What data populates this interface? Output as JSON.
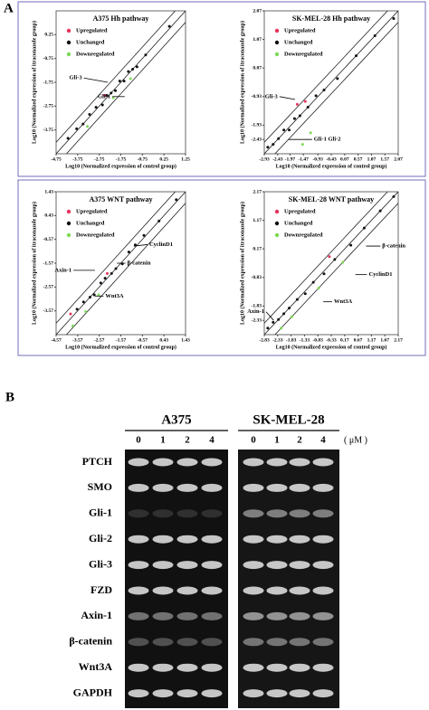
{
  "panel_labels": [
    "A",
    "B"
  ],
  "chart_data": [
    {
      "type": "scatter",
      "title": "A375  Hh pathway",
      "x_label": "Log10 (Normalized expression of control group)",
      "y_label": "Log10 (Normalized expression of itraconazole group)",
      "xlim": [
        -4.75,
        1.25
      ],
      "ylim": [
        -4.75,
        1.25
      ],
      "xticks": [
        -4.75,
        -3.75,
        -2.75,
        -1.75,
        -0.75,
        0.25,
        1.25
      ],
      "yticks": [
        0.25,
        -0.75,
        -1.75,
        -2.75,
        -3.75
      ],
      "series": [
        {
          "name": "Upregulated",
          "color": "#e8325a",
          "x": [
            -2.5
          ],
          "values": [
            -2.3
          ]
        },
        {
          "name": "Unchanged",
          "color": "#111111",
          "x": [
            -4.2,
            -3.8,
            -3.5,
            -3.2,
            -2.9,
            -2.6,
            -2.4,
            -2.2,
            -2.0,
            -1.8,
            -1.6,
            -1.4,
            -1.2,
            -1.0,
            -0.6,
            0.5
          ],
          "values": [
            -4.1,
            -3.7,
            -3.5,
            -3.1,
            -2.8,
            -2.7,
            -2.3,
            -2.2,
            -2.1,
            -1.7,
            -1.7,
            -1.3,
            -1.2,
            -1.1,
            -0.6,
            0.6
          ]
        },
        {
          "name": "Downregulated",
          "color": "#7ed957",
          "x": [
            -3.3,
            -2.1,
            -1.3
          ],
          "values": [
            -3.6,
            -2.4,
            -1.6
          ]
        }
      ],
      "annotations": [
        "Gli-3",
        "Gli-1"
      ]
    },
    {
      "type": "scatter",
      "title": "SK-MEL-28  Hh pathway",
      "x_label": "Log10 (Normalized expression of control group)",
      "y_label": "Log10 (Normalized expression of itraconazole group)",
      "xlim": [
        -2.93,
        2.07
      ],
      "ylim": [
        -2.93,
        2.07
      ],
      "xticks": [
        -2.93,
        -2.43,
        -1.97,
        -1.47,
        -0.93,
        -0.43,
        0.07,
        0.57,
        1.07,
        1.57,
        2.07
      ],
      "yticks": [
        2.07,
        1.07,
        0.07,
        -0.93,
        -1.93,
        -2.43
      ],
      "series": [
        {
          "name": "Upregulated",
          "color": "#e8325a",
          "x": [
            -1.7,
            -1.4
          ],
          "values": [
            -1.2,
            -1.1
          ]
        },
        {
          "name": "Unchanged",
          "color": "#111111",
          "x": [
            -2.8,
            -2.6,
            -2.4,
            -2.2,
            -2.0,
            -1.8,
            -1.6,
            -1.3,
            -1.0,
            -0.7,
            -0.2,
            0.5,
            1.2,
            1.9
          ],
          "values": [
            -2.7,
            -2.6,
            -2.4,
            -2.1,
            -2.1,
            -1.7,
            -1.6,
            -1.3,
            -0.9,
            -0.7,
            -0.3,
            0.5,
            1.2,
            1.8
          ]
        },
        {
          "name": "Downregulated",
          "color": "#7ed957",
          "x": [
            -1.5,
            -1.2
          ],
          "values": [
            -2.6,
            -2.2
          ]
        }
      ],
      "annotations": [
        "Gli-3",
        "Gli-1 Gli-2"
      ]
    },
    {
      "type": "scatter",
      "title": "A375  WNT pathway",
      "x_label": "Log10 (Normalized expression of control group)",
      "y_label": "Log10 (Normalized expression of itraconazole group)",
      "xlim": [
        -4.57,
        1.43
      ],
      "ylim": [
        -4.57,
        1.43
      ],
      "xticks": [
        -4.57,
        -3.57,
        -2.57,
        -1.57,
        -0.57,
        0.43,
        1.43
      ],
      "yticks": [
        1.43,
        0.43,
        -0.57,
        -1.57,
        -2.57,
        -3.57
      ],
      "series": [
        {
          "name": "Upregulated",
          "color": "#e8325a",
          "x": [
            -2.2,
            -3.9
          ],
          "values": [
            -2.0,
            -3.7
          ]
        },
        {
          "name": "Unchanged",
          "color": "#111111",
          "x": [
            -3.6,
            -3.3,
            -3.0,
            -2.8,
            -2.5,
            -2.3,
            -2.0,
            -1.8,
            -1.5,
            -1.2,
            -0.9,
            -0.5,
            0.2,
            1.0
          ],
          "values": [
            -3.5,
            -3.2,
            -3.0,
            -2.9,
            -2.4,
            -2.2,
            -2.0,
            -1.8,
            -1.6,
            -1.1,
            -0.8,
            -0.4,
            0.2,
            1.1
          ]
        },
        {
          "name": "Downregulated",
          "color": "#7ed957",
          "x": [
            -3.8,
            -3.2,
            -2.6
          ],
          "values": [
            -4.2,
            -3.6,
            -2.9
          ]
        }
      ],
      "annotations": [
        "CyclinD1",
        "β-catenin",
        "Axin-1",
        "Wnt3A"
      ]
    },
    {
      "type": "scatter",
      "title": "SK-MEL-28  WNT pathway",
      "x_label": "Log10 (Normalized expression of control group)",
      "y_label": "Log10 (Normalized expression of itraconazole group)",
      "xlim": [
        -2.83,
        2.17
      ],
      "ylim": [
        -2.83,
        2.17
      ],
      "xticks": [
        -2.83,
        -2.33,
        -1.83,
        -1.33,
        -0.83,
        -0.33,
        0.17,
        0.67,
        1.17,
        1.67,
        2.17
      ],
      "yticks": [
        2.17,
        1.17,
        0.17,
        -0.83,
        -1.83,
        -2.33
      ],
      "series": [
        {
          "name": "Upregulated",
          "color": "#e8325a",
          "x": [
            -0.4
          ],
          "values": [
            -0.1
          ]
        },
        {
          "name": "Unchanged",
          "color": "#111111",
          "x": [
            -2.7,
            -2.5,
            -2.3,
            -2.1,
            -1.9,
            -1.6,
            -1.3,
            -1.0,
            -0.6,
            -0.2,
            0.4,
            0.9,
            1.5,
            2.0
          ],
          "values": [
            -2.6,
            -2.4,
            -2.3,
            -2.1,
            -1.9,
            -1.6,
            -1.4,
            -1.0,
            -0.7,
            -0.2,
            0.3,
            0.9,
            1.5,
            2.0
          ]
        },
        {
          "name": "Downregulated",
          "color": "#7ed957",
          "x": [
            -2.2,
            -1.8,
            -0.8,
            0.1
          ],
          "values": [
            -2.6,
            -2.2,
            -1.2,
            -0.3
          ]
        }
      ],
      "annotations": [
        "β-catenin",
        "CyclinD1",
        "Wnt3A",
        "Axin-1"
      ]
    }
  ],
  "panel_b": {
    "groups": [
      "A375",
      "SK-MEL-28"
    ],
    "doses": [
      "0",
      "1",
      "2",
      "4"
    ],
    "unit": "( μM )",
    "genes": [
      "PTCH",
      "SMO",
      "Gli-1",
      "Gli-2",
      "Gli-3",
      "FZD",
      "Axin-1",
      "β-catenin",
      "Wnt3A",
      "GAPDH"
    ]
  }
}
